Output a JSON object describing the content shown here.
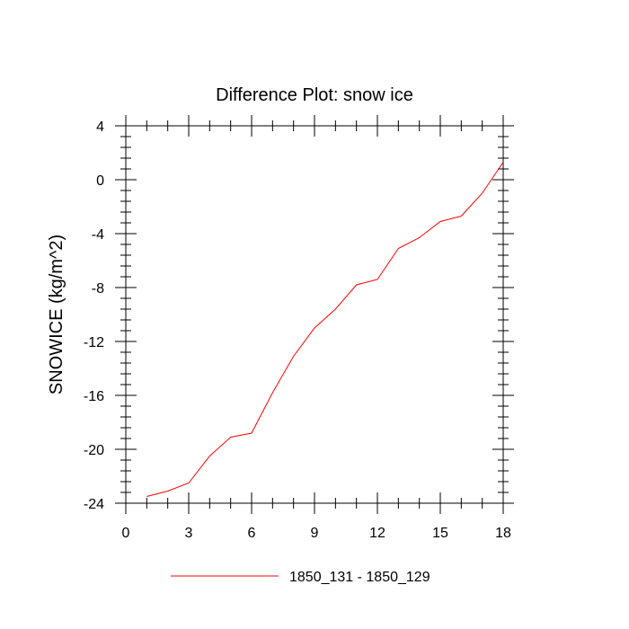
{
  "chart_data": {
    "type": "line",
    "title": "Difference Plot: snow ice",
    "xlabel": "",
    "ylabel": "SNOWICE  (kg/m^2)",
    "xlim": [
      0,
      18
    ],
    "ylim": [
      -24,
      4
    ],
    "x_ticks": [
      0,
      3,
      6,
      9,
      12,
      15,
      18
    ],
    "x_tick_labels": [
      "0",
      "3",
      "6",
      "9",
      "12",
      "15",
      "18"
    ],
    "x_minor_step": 1,
    "y_ticks": [
      4,
      0,
      -4,
      -8,
      -12,
      -16,
      -20,
      -24
    ],
    "y_tick_labels": [
      "4",
      "0",
      "-4",
      "-8",
      "-12",
      "-16",
      "-20",
      "-24"
    ],
    "y_minor_step": 0.8,
    "grid": false,
    "legend_position": "bottom-center",
    "series": [
      {
        "name": "1850_131 - 1850_129",
        "color": "#ff0000",
        "x": [
          1,
          2,
          3,
          4,
          5,
          6,
          7,
          8,
          9,
          10,
          11,
          12,
          13,
          14,
          15,
          16,
          17,
          18
        ],
        "y": [
          -23.5,
          -23.1,
          -22.5,
          -20.5,
          -19.1,
          -18.8,
          -15.8,
          -13.1,
          -11.0,
          -9.6,
          -7.8,
          -7.4,
          -5.1,
          -4.3,
          -3.1,
          -2.7,
          -1.0,
          1.3
        ]
      }
    ]
  }
}
